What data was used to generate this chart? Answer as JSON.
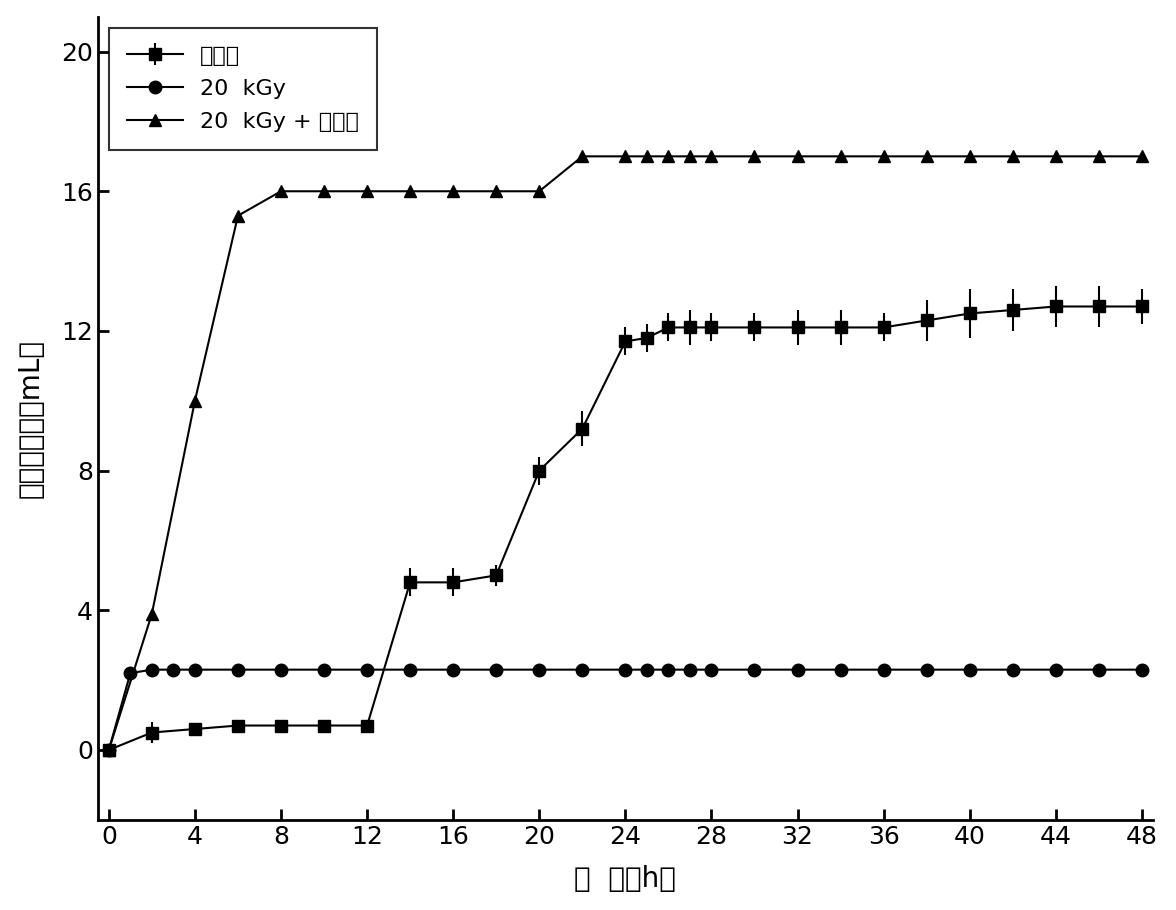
{
  "series1_label": "葡萄糖",
  "series2_label": "20  kGy",
  "series3_label": "20  kGy + 葡萄糖",
  "xlabel": "时  间（h）",
  "ylabel": "累积产氢量（mL）",
  "xlim": [
    -0.5,
    48.5
  ],
  "ylim": [
    -2,
    21
  ],
  "xticks": [
    0,
    4,
    8,
    12,
    16,
    20,
    24,
    28,
    32,
    36,
    40,
    44,
    48
  ],
  "yticks": [
    0,
    4,
    8,
    12,
    16,
    20
  ],
  "color": "#000000",
  "series1_x": [
    0,
    2,
    4,
    6,
    8,
    10,
    12,
    14,
    16,
    18,
    20,
    22,
    24,
    25,
    26,
    27,
    28,
    30,
    32,
    34,
    36,
    38,
    40,
    42,
    44,
    46,
    48
  ],
  "series1_y": [
    0,
    0.5,
    0.6,
    0.7,
    0.7,
    0.7,
    0.7,
    4.8,
    4.8,
    5.0,
    8.0,
    9.2,
    11.7,
    11.8,
    12.1,
    12.1,
    12.1,
    12.1,
    12.1,
    12.1,
    12.1,
    12.3,
    12.5,
    12.6,
    12.7,
    12.7,
    12.7
  ],
  "series1_yerr": [
    0.1,
    0.3,
    0.1,
    0.1,
    0.1,
    0.1,
    0.1,
    0.4,
    0.4,
    0.3,
    0.4,
    0.5,
    0.4,
    0.4,
    0.4,
    0.5,
    0.4,
    0.4,
    0.5,
    0.5,
    0.4,
    0.6,
    0.7,
    0.6,
    0.6,
    0.6,
    0.5
  ],
  "series2_x": [
    0,
    1,
    2,
    3,
    4,
    6,
    8,
    10,
    12,
    14,
    16,
    18,
    20,
    22,
    24,
    25,
    26,
    27,
    28,
    30,
    32,
    34,
    36,
    38,
    40,
    42,
    44,
    46,
    48
  ],
  "series2_y": [
    0,
    2.2,
    2.3,
    2.3,
    2.3,
    2.3,
    2.3,
    2.3,
    2.3,
    2.3,
    2.3,
    2.3,
    2.3,
    2.3,
    2.3,
    2.3,
    2.3,
    2.3,
    2.3,
    2.3,
    2.3,
    2.3,
    2.3,
    2.3,
    2.3,
    2.3,
    2.3,
    2.3,
    2.3
  ],
  "series3_x": [
    0,
    2,
    4,
    6,
    8,
    10,
    12,
    14,
    16,
    18,
    20,
    22,
    24,
    25,
    26,
    27,
    28,
    30,
    32,
    34,
    36,
    38,
    40,
    42,
    44,
    46,
    48
  ],
  "series3_y": [
    0,
    3.9,
    10.0,
    15.3,
    16.0,
    16.0,
    16.0,
    16.0,
    16.0,
    16.0,
    16.0,
    17.0,
    17.0,
    17.0,
    17.0,
    17.0,
    17.0,
    17.0,
    17.0,
    17.0,
    17.0,
    17.0,
    17.0,
    17.0,
    17.0,
    17.0,
    17.0
  ],
  "figsize": [
    11.76,
    9.1
  ],
  "dpi": 100
}
